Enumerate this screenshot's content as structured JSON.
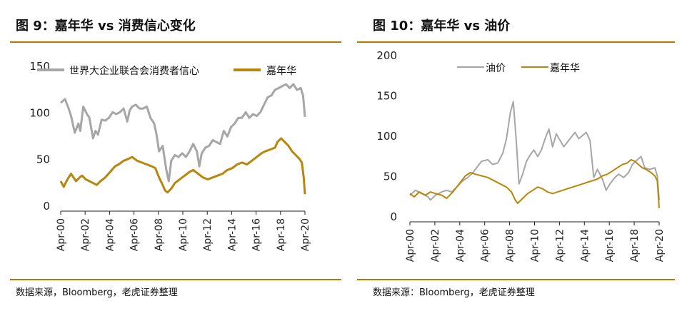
{
  "colors": {
    "gray": "#a6a6a6",
    "gold": "#b8860b",
    "rule": "#b07a00"
  },
  "chart_data": [
    {
      "type": "line",
      "title": "图 9：嘉年华 vs 消费信心变化",
      "x_tick_labels": [
        "Apr-00",
        "Apr-02",
        "Apr-04",
        "Apr-06",
        "Apr-08",
        "Apr-10",
        "Apr-12",
        "Apr-14",
        "Apr-16",
        "Apr-18",
        "Apr-20"
      ],
      "x_range": [
        2000.25,
        2020.25
      ],
      "ylim": [
        0,
        150
      ],
      "y_ticks": [
        0,
        50,
        100,
        150
      ],
      "legend": "top",
      "source": "数据来源，Bloomberg，老虎证券整理",
      "series": [
        {
          "name": "世界大企业联合会消费者信心",
          "color": "#a6a6a6",
          "x": [
            2000.25,
            2000.6,
            2000.9,
            2001.1,
            2001.4,
            2001.7,
            2001.85,
            2002.1,
            2002.4,
            2002.6,
            2002.9,
            2003.1,
            2003.3,
            2003.6,
            2003.9,
            2004.2,
            2004.5,
            2004.8,
            2005.1,
            2005.4,
            2005.7,
            2005.9,
            2006.1,
            2006.4,
            2006.7,
            2007.0,
            2007.3,
            2007.6,
            2007.9,
            2008.1,
            2008.3,
            2008.6,
            2008.9,
            2009.1,
            2009.3,
            2009.6,
            2009.9,
            2010.2,
            2010.5,
            2010.8,
            2011.1,
            2011.4,
            2011.6,
            2011.8,
            2012.1,
            2012.4,
            2012.7,
            2013.0,
            2013.3,
            2013.6,
            2013.9,
            2014.2,
            2014.5,
            2014.8,
            2015.1,
            2015.4,
            2015.7,
            2016.0,
            2016.3,
            2016.6,
            2016.9,
            2017.2,
            2017.5,
            2017.8,
            2018.1,
            2018.4,
            2018.7,
            2019.0,
            2019.3,
            2019.6,
            2019.9,
            2020.1,
            2020.25
          ],
          "values": [
            110,
            114,
            104,
            96,
            78,
            88,
            80,
            106,
            98,
            94,
            72,
            80,
            76,
            92,
            91,
            94,
            100,
            98,
            100,
            104,
            90,
            102,
            106,
            108,
            104,
            104,
            106,
            94,
            88,
            76,
            58,
            64,
            38,
            26,
            48,
            54,
            52,
            56,
            52,
            58,
            66,
            58,
            42,
            56,
            62,
            64,
            70,
            68,
            66,
            80,
            74,
            84,
            88,
            94,
            94,
            100,
            94,
            98,
            96,
            100,
            108,
            116,
            118,
            124,
            126,
            128,
            130,
            126,
            130,
            124,
            126,
            118,
            95
          ]
        },
        {
          "name": "嘉年华",
          "color": "#b8860b",
          "x": [
            2000.25,
            2000.5,
            2000.8,
            2001.1,
            2001.5,
            2001.8,
            2002.0,
            2002.3,
            2002.6,
            2002.9,
            2003.2,
            2003.5,
            2003.9,
            2004.3,
            2004.7,
            2005.0,
            2005.4,
            2005.8,
            2006.1,
            2006.5,
            2006.9,
            2007.3,
            2007.7,
            2008.0,
            2008.3,
            2008.6,
            2008.8,
            2009.0,
            2009.3,
            2009.6,
            2010.0,
            2010.4,
            2010.8,
            2011.1,
            2011.5,
            2011.9,
            2012.3,
            2012.7,
            2013.1,
            2013.5,
            2013.9,
            2014.3,
            2014.7,
            2015.1,
            2015.5,
            2015.9,
            2016.3,
            2016.7,
            2017.0,
            2017.4,
            2017.8,
            2018.0,
            2018.3,
            2018.6,
            2018.9,
            2019.2,
            2019.5,
            2019.8,
            2020.0,
            2020.15,
            2020.25
          ],
          "values": [
            26,
            20,
            28,
            34,
            26,
            30,
            32,
            28,
            26,
            24,
            22,
            26,
            30,
            36,
            42,
            44,
            48,
            50,
            52,
            48,
            46,
            44,
            42,
            40,
            30,
            22,
            16,
            14,
            18,
            24,
            28,
            32,
            36,
            38,
            34,
            30,
            28,
            30,
            32,
            34,
            38,
            40,
            44,
            46,
            44,
            48,
            52,
            56,
            58,
            60,
            62,
            68,
            72,
            68,
            64,
            58,
            54,
            50,
            46,
            30,
            12
          ]
        }
      ]
    },
    {
      "type": "line",
      "title": "图 10：嘉年华 vs 油价",
      "x_tick_labels": [
        "Apr-00",
        "Apr-02",
        "Apr-04",
        "Apr-06",
        "Apr-08",
        "Apr-10",
        "Apr-12",
        "Apr-14",
        "Apr-16",
        "Apr-18",
        "Apr-20"
      ],
      "x_range": [
        2000.25,
        2020.25
      ],
      "ylim": [
        0,
        200
      ],
      "y_ticks": [
        0,
        50,
        100,
        150,
        200
      ],
      "legend": "top",
      "source": "数据来源：Bloomberg，老虎证券整理",
      "series": [
        {
          "name": "油价",
          "color": "#a6a6a6",
          "x": [
            2000.25,
            2000.7,
            2001.2,
            2001.7,
            2001.9,
            2002.3,
            2002.8,
            2003.2,
            2003.6,
            2004.0,
            2004.5,
            2004.9,
            2005.3,
            2005.7,
            2006.0,
            2006.5,
            2006.9,
            2007.3,
            2007.7,
            2008.0,
            2008.3,
            2008.55,
            2008.8,
            2009.0,
            2009.3,
            2009.6,
            2009.9,
            2010.2,
            2010.5,
            2010.8,
            2011.1,
            2011.4,
            2011.7,
            2012.0,
            2012.3,
            2012.6,
            2012.9,
            2013.2,
            2013.5,
            2013.8,
            2014.1,
            2014.4,
            2014.7,
            2015.0,
            2015.3,
            2015.7,
            2016.0,
            2016.3,
            2016.7,
            2017.0,
            2017.4,
            2017.8,
            2018.1,
            2018.5,
            2018.8,
            2019.1,
            2019.5,
            2019.9,
            2020.1,
            2020.25
          ],
          "values": [
            26,
            32,
            28,
            24,
            20,
            26,
            30,
            32,
            30,
            36,
            44,
            48,
            54,
            62,
            68,
            70,
            64,
            66,
            78,
            96,
            128,
            142,
            90,
            40,
            52,
            68,
            76,
            82,
            74,
            82,
            96,
            108,
            86,
            102,
            94,
            86,
            92,
            98,
            104,
            96,
            100,
            104,
            94,
            48,
            58,
            46,
            32,
            40,
            48,
            52,
            48,
            54,
            64,
            70,
            74,
            60,
            58,
            60,
            50,
            20
          ]
        },
        {
          "name": "嘉年华",
          "color": "#b8860b",
          "x": [
            2000.25,
            2000.6,
            2001.0,
            2001.5,
            2001.9,
            2002.3,
            2002.8,
            2003.2,
            2003.7,
            2004.2,
            2004.7,
            2005.1,
            2005.5,
            2006.0,
            2006.5,
            2007.0,
            2007.5,
            2008.0,
            2008.4,
            2008.7,
            2008.9,
            2009.3,
            2009.7,
            2010.1,
            2010.5,
            2010.9,
            2011.3,
            2011.7,
            2012.1,
            2012.5,
            2012.9,
            2013.3,
            2013.7,
            2014.1,
            2014.5,
            2014.9,
            2015.3,
            2015.7,
            2016.1,
            2016.5,
            2016.9,
            2017.3,
            2017.7,
            2018.0,
            2018.3,
            2018.6,
            2018.9,
            2019.2,
            2019.6,
            2019.9,
            2020.1,
            2020.25
          ],
          "values": [
            28,
            24,
            30,
            26,
            30,
            28,
            26,
            22,
            30,
            40,
            50,
            54,
            52,
            50,
            48,
            44,
            40,
            36,
            30,
            20,
            16,
            22,
            28,
            32,
            36,
            34,
            30,
            28,
            30,
            32,
            34,
            36,
            38,
            40,
            42,
            44,
            46,
            50,
            52,
            56,
            60,
            64,
            66,
            70,
            68,
            64,
            60,
            58,
            54,
            50,
            44,
            10
          ]
        }
      ]
    }
  ]
}
